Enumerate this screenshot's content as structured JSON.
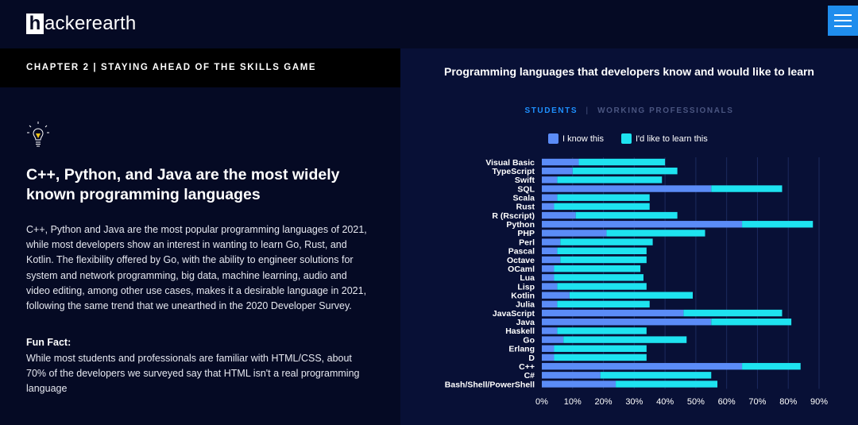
{
  "header": {
    "logo_letter": "h",
    "logo_rest": "ackerearth",
    "menu_icon": "hamburger-icon"
  },
  "chapter": {
    "label": "CHAPTER 2 | STAYING AHEAD OF THE SKILLS GAME"
  },
  "article": {
    "icon": "lightbulb-icon",
    "headline": "C++, Python, and Java are the most widely known programming languages",
    "body": "C++, Python and Java are the most popular programming languages of 2021, while most developers show an interest in wanting to learn Go, Rust, and Kotlin. The flexibility offered by Go, with the ability to engineer solutions for system and network programming, big data, machine learning, audio and video editing, among other use cases, makes it a desirable language in 2021, following the same trend that we unearthed in the 2020 Developer Survey.",
    "fun_fact_title": "Fun Fact:",
    "fun_fact": "While most students and professionals are familiar with HTML/CSS, about 70% of the developers we surveyed say that HTML isn't a real programming language"
  },
  "tabs": {
    "students": "STUDENTS",
    "separator": "|",
    "professionals": "WORKING PROFESSIONALS",
    "active": "students"
  },
  "colors": {
    "know": "#5b8cf7",
    "learn": "#1ee3f0",
    "accent": "#1e90ff"
  },
  "chart_data": {
    "type": "bar",
    "orientation": "horizontal",
    "stacked": true,
    "title": "Programming languages that developers know and would like to learn",
    "categories": [
      "Visual Basic",
      "TypeScript",
      "Swift",
      "SQL",
      "Scala",
      "Rust",
      "R (Rscript)",
      "Python",
      "PHP",
      "Perl",
      "Pascal",
      "Octave",
      "OCaml",
      "Lua",
      "Lisp",
      "Kotlin",
      "Julia",
      "JavaScript",
      "Java",
      "Haskell",
      "Go",
      "Erlang",
      "D",
      "C++",
      "C#",
      "Bash/Shell/PowerShell"
    ],
    "series": [
      {
        "name": "I know this",
        "values": [
          12,
          10,
          5,
          55,
          5,
          4,
          11,
          65,
          21,
          6,
          5,
          6,
          4,
          4,
          5,
          9,
          5,
          46,
          55,
          5,
          7,
          4,
          4,
          65,
          19,
          24
        ]
      },
      {
        "name": "I'd like to learn this",
        "values": [
          28,
          34,
          34,
          23,
          30,
          31,
          33,
          23,
          32,
          30,
          29,
          28,
          28,
          29,
          29,
          40,
          30,
          32,
          26,
          29,
          40,
          30,
          30,
          19,
          36,
          33
        ]
      }
    ],
    "xticks": [
      "0%",
      "10%",
      "20%",
      "30%",
      "40%",
      "50%",
      "60%",
      "70%",
      "80%",
      "90%"
    ],
    "xlim": [
      0,
      90
    ],
    "grid": true,
    "legend_position": "top"
  }
}
